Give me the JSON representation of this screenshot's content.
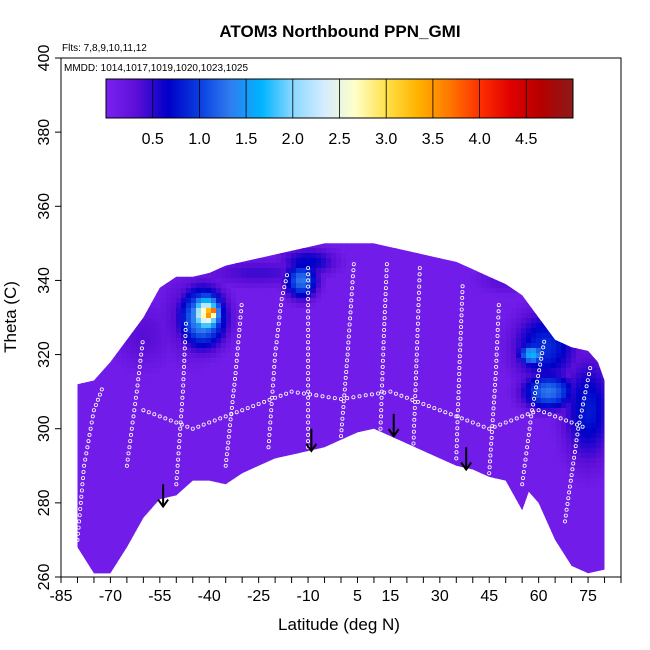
{
  "chart_data": {
    "type": "heatmap",
    "title": "ATOM3 Northbound PPN_GMI",
    "notes": [
      "Flts: 7,8,9,10,11,12",
      "MMDD: 1014,1017,1019,1020,1023,1025"
    ],
    "xlabel": "Latitude (deg N)",
    "ylabel": "Theta (C)",
    "xlim": [
      -85,
      85
    ],
    "ylim": [
      260,
      400
    ],
    "x_ticks": [
      -85,
      -70,
      -55,
      -40,
      -25,
      -10,
      5,
      15,
      30,
      45,
      60,
      75
    ],
    "y_ticks": [
      260,
      280,
      300,
      320,
      340,
      360,
      380,
      400
    ],
    "colorbar": {
      "range": [
        0,
        5
      ],
      "ticks": [
        0.5,
        1.0,
        1.5,
        2.0,
        2.5,
        3.0,
        3.5,
        4.0,
        4.5
      ],
      "tick_labels": [
        "0.5",
        "1.0",
        "1.5",
        "2.0",
        "2.5",
        "3.0",
        "3.5",
        "4.0",
        "4.5"
      ],
      "colors": [
        "#7b22f0",
        "#5a0ed6",
        "#0000c8",
        "#0a3ee0",
        "#2f7df0",
        "#00b4ff",
        "#8ad8ff",
        "#d4ecff",
        "#ffffc8",
        "#ffe14a",
        "#ffb400",
        "#ff7a00",
        "#ff3000",
        "#e00000",
        "#b40000",
        "#8c1a1a"
      ]
    },
    "field_upper_boundary": [
      [
        -80,
        312
      ],
      [
        -75,
        313
      ],
      [
        -70,
        318
      ],
      [
        -65,
        324
      ],
      [
        -60,
        330
      ],
      [
        -55,
        338
      ],
      [
        -50,
        341
      ],
      [
        -45,
        341
      ],
      [
        -40,
        342
      ],
      [
        -35,
        344
      ],
      [
        -30,
        345
      ],
      [
        -25,
        346
      ],
      [
        -20,
        347
      ],
      [
        -15,
        348
      ],
      [
        -10,
        349
      ],
      [
        -5,
        350
      ],
      [
        0,
        350
      ],
      [
        5,
        350
      ],
      [
        10,
        350
      ],
      [
        15,
        349
      ],
      [
        20,
        348
      ],
      [
        25,
        347
      ],
      [
        30,
        346
      ],
      [
        35,
        345
      ],
      [
        40,
        343
      ],
      [
        45,
        341
      ],
      [
        50,
        339
      ],
      [
        55,
        336
      ],
      [
        60,
        330
      ],
      [
        65,
        324
      ],
      [
        70,
        322
      ],
      [
        75,
        321
      ],
      [
        78,
        318
      ],
      [
        80,
        313
      ]
    ],
    "field_lower_boundary": [
      [
        -80,
        268
      ],
      [
        -75,
        261
      ],
      [
        -70,
        261
      ],
      [
        -65,
        268
      ],
      [
        -60,
        276
      ],
      [
        -55,
        281
      ],
      [
        -50,
        282
      ],
      [
        -45,
        286
      ],
      [
        -40,
        286
      ],
      [
        -35,
        285
      ],
      [
        -30,
        288
      ],
      [
        -25,
        290
      ],
      [
        -20,
        292
      ],
      [
        -15,
        293
      ],
      [
        -10,
        294
      ],
      [
        -5,
        295
      ],
      [
        0,
        297
      ],
      [
        5,
        299
      ],
      [
        10,
        300
      ],
      [
        15,
        298
      ],
      [
        20,
        296
      ],
      [
        25,
        294
      ],
      [
        30,
        292
      ],
      [
        35,
        290
      ],
      [
        40,
        289
      ],
      [
        45,
        287
      ],
      [
        50,
        286
      ],
      [
        55,
        278
      ],
      [
        57,
        283
      ],
      [
        60,
        280
      ],
      [
        65,
        270
      ],
      [
        70,
        263
      ],
      [
        75,
        261
      ],
      [
        80,
        262
      ]
    ],
    "features": [
      {
        "lat": -45,
        "theta": 330,
        "value": 0.5,
        "rx": 10,
        "ry": 12
      },
      {
        "lat": -42,
        "theta": 330,
        "value": 1.6,
        "rx": 7,
        "ry": 8
      },
      {
        "lat": -41,
        "theta": 331,
        "value": 2.8,
        "rx": 4.5,
        "ry": 5
      },
      {
        "lat": -40,
        "theta": 331,
        "value": 3.6,
        "rx": 2.5,
        "ry": 3
      },
      {
        "lat": -39,
        "theta": 331.5,
        "value": 4.2,
        "rx": 1.2,
        "ry": 1.5
      },
      {
        "lat": -25,
        "theta": 342,
        "value": 0.45,
        "rx": 18,
        "ry": 4
      },
      {
        "lat": -10,
        "theta": 345,
        "value": 0.7,
        "rx": 9,
        "ry": 4
      },
      {
        "lat": -12,
        "theta": 340,
        "value": 1.3,
        "rx": 5,
        "ry": 5
      },
      {
        "lat": 62,
        "theta": 322,
        "value": 0.9,
        "rx": 10,
        "ry": 10
      },
      {
        "lat": 58,
        "theta": 320,
        "value": 1.7,
        "rx": 4,
        "ry": 3
      },
      {
        "lat": 63,
        "theta": 310,
        "value": 1.3,
        "rx": 8,
        "ry": 5
      },
      {
        "lat": 75,
        "theta": 305,
        "value": 0.8,
        "rx": 8,
        "ry": 15
      },
      {
        "lat": -60,
        "theta": 325,
        "value": 0.35,
        "rx": 10,
        "ry": 10
      },
      {
        "lat": 50,
        "theta": 340,
        "value": 0.35,
        "rx": 10,
        "ry": 4
      }
    ],
    "background_value": 0.1,
    "flight_tracks": [
      {
        "lat": [
          -80,
          -78,
          -75,
          -72
        ],
        "theta": [
          270,
          290,
          305,
          312
        ]
      },
      {
        "lat": [
          -65,
          -62,
          -60
        ],
        "theta": [
          290,
          310,
          325
        ]
      },
      {
        "lat": [
          -50,
          -48,
          -47
        ],
        "theta": [
          285,
          310,
          330
        ]
      },
      {
        "lat": [
          -35,
          -32,
          -30
        ],
        "theta": [
          290,
          315,
          335
        ]
      },
      {
        "lat": [
          -22,
          -20,
          -18,
          -16
        ],
        "theta": [
          295,
          320,
          335,
          343
        ]
      },
      {
        "lat": [
          -10,
          -10,
          -10
        ],
        "theta": [
          295,
          320,
          345
        ]
      },
      {
        "lat": [
          0,
          2,
          4
        ],
        "theta": [
          298,
          320,
          346
        ]
      },
      {
        "lat": [
          12,
          13,
          14
        ],
        "theta": [
          300,
          325,
          346
        ]
      },
      {
        "lat": [
          22,
          23,
          24
        ],
        "theta": [
          296,
          320,
          345
        ]
      },
      {
        "lat": [
          35,
          36,
          37
        ],
        "theta": [
          292,
          318,
          340
        ]
      },
      {
        "lat": [
          45,
          47,
          48
        ],
        "theta": [
          288,
          315,
          335
        ]
      },
      {
        "lat": [
          55,
          58,
          62
        ],
        "theta": [
          285,
          305,
          325
        ]
      },
      {
        "lat": [
          68,
          72,
          76
        ],
        "theta": [
          275,
          300,
          318
        ]
      },
      {
        "lat": [
          -60,
          -45,
          -30,
          -15,
          0,
          15,
          30,
          45,
          60,
          75
        ],
        "theta": [
          305,
          300,
          305,
          310,
          308,
          310,
          305,
          300,
          305,
          300
        ]
      }
    ],
    "arrows": [
      {
        "lat": -54,
        "theta_top": 285,
        "theta_tip": 279
      },
      {
        "lat": -9,
        "theta_top": 300,
        "theta_tip": 294
      },
      {
        "lat": 16,
        "theta_top": 304,
        "theta_tip": 298
      },
      {
        "lat": 38,
        "theta_top": 295,
        "theta_tip": 289
      }
    ]
  }
}
